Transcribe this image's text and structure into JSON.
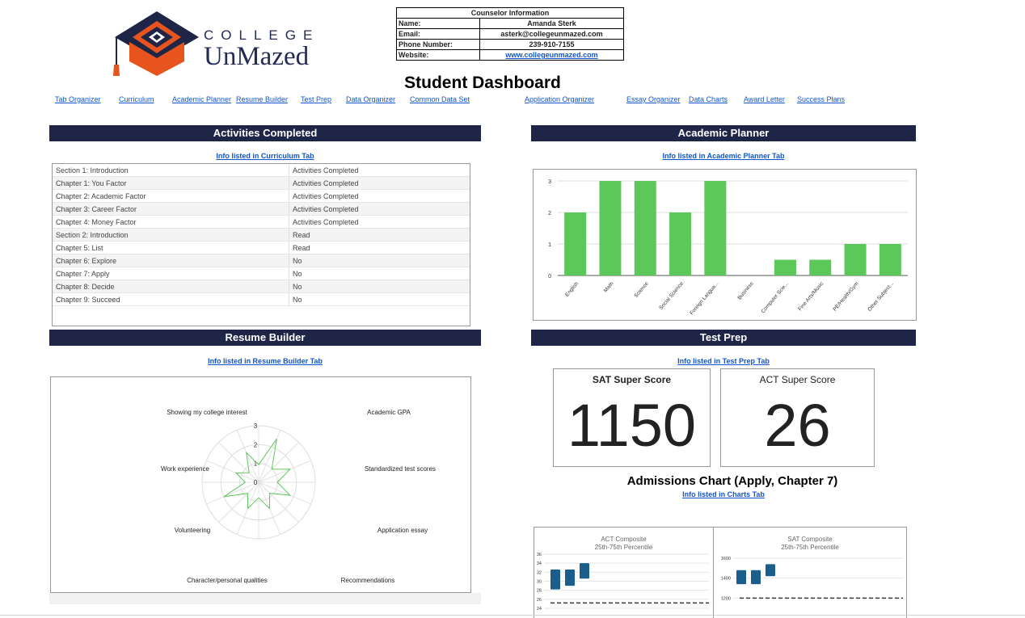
{
  "brand": {
    "line1": "COLLEGE",
    "line2": "UnMazed",
    "colors": {
      "navy": "#1f2547",
      "orange": "#e8541e"
    }
  },
  "counselor": {
    "title": "Counselor Information",
    "rows": [
      {
        "label": "Name:",
        "value": "Amanda Sterk"
      },
      {
        "label": "Email:",
        "value": "asterk@collegeunmazed.com"
      },
      {
        "label": "Phone Number:",
        "value": "239-910-7155"
      },
      {
        "label": "Website:",
        "value": "www.collegeunmazed.com"
      }
    ]
  },
  "page_title": "Student Dashboard",
  "nav": [
    "Tab Organizer",
    "Curriculum",
    "Academic Planner",
    "Resume Builder",
    "Test Prep",
    "Data Organizer",
    "Common Data Set",
    "Application Organizer",
    "Essay Organizer",
    "Data Charts",
    "Award Letter",
    "Success Plans"
  ],
  "activities": {
    "title": "Activities Completed",
    "info_link": "Info listed in Curriculum Tab",
    "rows": [
      [
        "Section 1: Introduction",
        "Activities Completed"
      ],
      [
        "Chapter 1: You Factor",
        "Activities Completed"
      ],
      [
        "Chapter 2: Academic Factor",
        "Activities Completed"
      ],
      [
        "Chapter 3: Career Factor",
        "Activities Completed"
      ],
      [
        "Chapter 4: Money Factor",
        "Activities Completed"
      ],
      [
        "Section 2: Introduction",
        "Read"
      ],
      [
        "Chapter 5: List",
        "Read"
      ],
      [
        "Chapter 6: Explore",
        "No"
      ],
      [
        "Chapter 7: Apply",
        "No"
      ],
      [
        "Chapter 8: Decide",
        "No"
      ],
      [
        "Chapter 9: Succeed",
        "No"
      ]
    ]
  },
  "academic_planner": {
    "title": "Academic Planner",
    "info_link": "Info listed in Academic Planner Tab"
  },
  "resume_builder": {
    "title": "Resume Builder",
    "info_link": "Info listed in Resume Builder Tab"
  },
  "test_prep": {
    "title": "Test Prep",
    "info_link": "Info listed in Test Prep Tab",
    "sat_label": "SAT Super Score",
    "sat_value": "1150",
    "act_label": "ACT Super Score",
    "act_value": "26"
  },
  "admissions": {
    "title": "Admissions Chart (Apply, Chapter 7)",
    "info_link": "Info listed in Charts Tab"
  },
  "chart_data": [
    {
      "type": "bar",
      "categories": [
        "English",
        "Math",
        "Science",
        "Social Science",
        "Foreign Langua...",
        "Business",
        "Computer Scie...",
        "Fine Arts/Music",
        "PE/Health/Gym",
        "Other Subject..."
      ],
      "values": [
        2,
        3,
        3,
        2,
        3,
        0,
        0.5,
        0.5,
        1,
        1
      ],
      "ylim": [
        0,
        3
      ],
      "yticks": [
        "0",
        "1",
        "2",
        "3"
      ],
      "color": "#5cc85a"
    },
    {
      "type": "radar",
      "axes": [
        "Academic GPA",
        "Standardized test scores",
        "Application essay",
        "Recommendations",
        "Character/personal qualities",
        "Volunteering",
        "Work experience",
        "Showing my college interest"
      ],
      "values": [
        2.5,
        1.8,
        1.8,
        1.5,
        1.5,
        2.0,
        1.3,
        1.7
      ],
      "ticks": [
        "0",
        "1",
        "2",
        "3"
      ],
      "max": 3,
      "color": "#5cc85a"
    },
    {
      "type": "range",
      "title": "ACT Composite",
      "subtitle": "25th-75th Percentile",
      "yticks": [
        "24",
        "26",
        "28",
        "30",
        "32",
        "34",
        "36"
      ],
      "ylim": [
        23.3,
        36
      ],
      "ranges": [
        [
          28.2,
          32.6
        ],
        [
          29,
          32.6
        ],
        [
          30.6,
          34
        ]
      ],
      "reference": 25.2,
      "color": "#1a5f8c"
    },
    {
      "type": "range",
      "title": "SAT Composite",
      "subtitle": "25th-75th Percentile",
      "yticks": [
        "1200",
        "1400",
        "1600"
      ],
      "ylim": [
        1000,
        1600
      ],
      "ranges": [
        [
          1340,
          1480
        ],
        [
          1340,
          1480
        ],
        [
          1420,
          1540
        ]
      ],
      "reference": 1200,
      "color": "#1a5f8c"
    }
  ]
}
